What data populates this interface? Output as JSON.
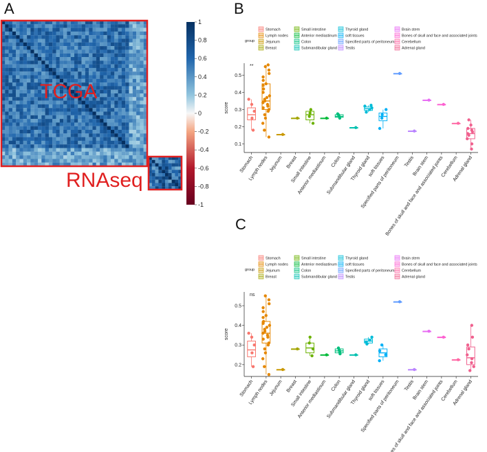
{
  "panels": {
    "a_label": "A",
    "b_label": "B",
    "c_label": "C"
  },
  "chart_data": [
    {
      "type": "heatmap",
      "panel": "A",
      "annotations": [
        "TCGA",
        "RNAseq"
      ],
      "colorbar": {
        "range": [
          -1,
          1
        ],
        "ticks": [
          "1",
          "0.8",
          "0.6",
          "0.4",
          "0.2",
          "0",
          "-0.2",
          "-0.4",
          "-0.6",
          "-0.8",
          "-1"
        ],
        "low_color": "#67001f",
        "mid_color": "#f7f7f7",
        "high_color": "#053061"
      },
      "blocks": [
        {
          "name": "TCGA",
          "size": 40
        },
        {
          "name": "RNAseq",
          "size": 10
        }
      ]
    },
    {
      "type": "box",
      "panel": "B",
      "legend_title": "group",
      "ylabel": "score",
      "ylim": [
        0.05,
        0.57
      ],
      "yticks": [
        "0.1",
        "0.2",
        "0.3",
        "0.4",
        "0.5"
      ],
      "significance": "**",
      "categories": [
        "Stomach",
        "Lymph nodes",
        "Jejunum",
        "Breast",
        "Small intestine",
        "Anterior mediastinum",
        "Colon",
        "Submandibular gland",
        "Thyroid gland",
        "soft tissues",
        "Specified parts of peritoneum",
        "Testis",
        "Brain stem",
        "Bones of skull and face and associated joints",
        "Cerebellum",
        "Adrenal gland"
      ],
      "colors": [
        "#F8766D",
        "#E58700",
        "#C99800",
        "#A3A500",
        "#6BB100",
        "#00BA38",
        "#00BF7D",
        "#00C0AF",
        "#00BCD8",
        "#00B0F6",
        "#619CFF",
        "#B983FF",
        "#E76BF3",
        "#FD61D1",
        "#FF67A4",
        "#F0608E"
      ],
      "stats": [
        {
          "q1": 0.24,
          "median": 0.27,
          "q3": 0.31,
          "min": 0.18,
          "max": 0.36,
          "points": [
            0.18,
            0.25,
            0.29,
            0.33,
            0.36
          ]
        },
        {
          "q1": 0.3,
          "median": 0.35,
          "q3": 0.45,
          "min": 0.14,
          "max": 0.56,
          "points": [
            0.14,
            0.18,
            0.22,
            0.25,
            0.27,
            0.29,
            0.3,
            0.31,
            0.32,
            0.33,
            0.34,
            0.35,
            0.36,
            0.37,
            0.38,
            0.4,
            0.42,
            0.44,
            0.45,
            0.47,
            0.49,
            0.51,
            0.53,
            0.55,
            0.56
          ]
        },
        {
          "q1": 0.155,
          "median": 0.155,
          "q3": 0.155,
          "min": 0.155,
          "max": 0.155,
          "points": [
            0.155
          ]
        },
        {
          "q1": 0.25,
          "median": 0.25,
          "q3": 0.25,
          "min": 0.25,
          "max": 0.25,
          "points": [
            0.25
          ]
        },
        {
          "q1": 0.24,
          "median": 0.27,
          "q3": 0.29,
          "min": 0.22,
          "max": 0.3,
          "points": [
            0.22,
            0.26,
            0.28,
            0.3
          ]
        },
        {
          "q1": 0.25,
          "median": 0.25,
          "q3": 0.25,
          "min": 0.25,
          "max": 0.25,
          "points": [
            0.25
          ]
        },
        {
          "q1": 0.255,
          "median": 0.26,
          "q3": 0.27,
          "min": 0.25,
          "max": 0.275,
          "points": [
            0.25,
            0.26,
            0.27,
            0.275
          ]
        },
        {
          "q1": 0.195,
          "median": 0.195,
          "q3": 0.195,
          "min": 0.195,
          "max": 0.195,
          "points": [
            0.195
          ]
        },
        {
          "q1": 0.295,
          "median": 0.305,
          "q3": 0.315,
          "min": 0.285,
          "max": 0.325,
          "points": [
            0.285,
            0.3,
            0.31,
            0.32,
            0.325
          ]
        },
        {
          "q1": 0.235,
          "median": 0.26,
          "q3": 0.28,
          "min": 0.19,
          "max": 0.3,
          "points": [
            0.19,
            0.25,
            0.27,
            0.3
          ]
        },
        {
          "q1": 0.51,
          "median": 0.51,
          "q3": 0.51,
          "min": 0.51,
          "max": 0.51,
          "points": [
            0.51
          ]
        },
        {
          "q1": 0.175,
          "median": 0.175,
          "q3": 0.175,
          "min": 0.175,
          "max": 0.175,
          "points": [
            0.175
          ]
        },
        {
          "q1": 0.355,
          "median": 0.355,
          "q3": 0.355,
          "min": 0.355,
          "max": 0.355,
          "points": [
            0.355
          ]
        },
        {
          "q1": 0.33,
          "median": 0.33,
          "q3": 0.33,
          "min": 0.33,
          "max": 0.33,
          "points": [
            0.33
          ]
        },
        {
          "q1": 0.22,
          "median": 0.22,
          "q3": 0.22,
          "min": 0.22,
          "max": 0.22,
          "points": [
            0.22
          ]
        },
        {
          "q1": 0.13,
          "median": 0.16,
          "q3": 0.19,
          "min": 0.07,
          "max": 0.24,
          "points": [
            0.07,
            0.1,
            0.13,
            0.15,
            0.16,
            0.17,
            0.18,
            0.19,
            0.21,
            0.24
          ]
        }
      ]
    },
    {
      "type": "box",
      "panel": "C",
      "legend_title": "group",
      "ylabel": "score",
      "ylim": [
        0.14,
        0.57
      ],
      "yticks": [
        "0.2",
        "0.3",
        "0.4",
        "0.5"
      ],
      "significance": "ns",
      "categories": [
        "Stomach",
        "Lymph nodes",
        "Jejunum",
        "Breast",
        "Small intestine",
        "Anterior mediastinum",
        "Colon",
        "Submandibular gland",
        "Thyroid gland",
        "soft tissues",
        "Specified parts of peritoneum",
        "Testis",
        "Brain stem",
        "Bones of skull and face and associated joints",
        "Cerebellum",
        "Adrenal gland"
      ],
      "colors": [
        "#F8766D",
        "#E58700",
        "#C99800",
        "#A3A500",
        "#6BB100",
        "#00BA38",
        "#00BF7D",
        "#00C0AF",
        "#00BCD8",
        "#00B0F6",
        "#619CFF",
        "#B983FF",
        "#E76BF3",
        "#FD61D1",
        "#FF67A4",
        "#F0608E"
      ],
      "stats": [
        {
          "q1": 0.24,
          "median": 0.275,
          "q3": 0.32,
          "min": 0.19,
          "max": 0.36,
          "points": [
            0.19,
            0.26,
            0.3,
            0.34,
            0.36
          ]
        },
        {
          "q1": 0.31,
          "median": 0.36,
          "q3": 0.42,
          "min": 0.15,
          "max": 0.55,
          "points": [
            0.15,
            0.19,
            0.23,
            0.26,
            0.28,
            0.3,
            0.31,
            0.33,
            0.34,
            0.35,
            0.36,
            0.37,
            0.38,
            0.39,
            0.4,
            0.41,
            0.42,
            0.44,
            0.45,
            0.47,
            0.49,
            0.51,
            0.53,
            0.55
          ]
        },
        {
          "q1": 0.175,
          "median": 0.175,
          "q3": 0.175,
          "min": 0.175,
          "max": 0.175,
          "points": [
            0.175
          ]
        },
        {
          "q1": 0.28,
          "median": 0.28,
          "q3": 0.28,
          "min": 0.28,
          "max": 0.28,
          "points": [
            0.28
          ]
        },
        {
          "q1": 0.26,
          "median": 0.285,
          "q3": 0.31,
          "min": 0.245,
          "max": 0.34,
          "points": [
            0.245,
            0.28,
            0.31,
            0.34
          ]
        },
        {
          "q1": 0.25,
          "median": 0.25,
          "q3": 0.25,
          "min": 0.25,
          "max": 0.25,
          "points": [
            0.25
          ]
        },
        {
          "q1": 0.26,
          "median": 0.27,
          "q3": 0.28,
          "min": 0.255,
          "max": 0.285,
          "points": [
            0.255,
            0.265,
            0.275,
            0.285
          ]
        },
        {
          "q1": 0.25,
          "median": 0.25,
          "q3": 0.25,
          "min": 0.25,
          "max": 0.25,
          "points": [
            0.25
          ]
        },
        {
          "q1": 0.31,
          "median": 0.32,
          "q3": 0.33,
          "min": 0.305,
          "max": 0.34,
          "points": [
            0.305,
            0.315,
            0.325,
            0.34
          ]
        },
        {
          "q1": 0.24,
          "median": 0.26,
          "q3": 0.28,
          "min": 0.22,
          "max": 0.3,
          "points": [
            0.22,
            0.25,
            0.27,
            0.3
          ]
        },
        {
          "q1": 0.52,
          "median": 0.52,
          "q3": 0.52,
          "min": 0.52,
          "max": 0.52,
          "points": [
            0.52
          ]
        },
        {
          "q1": 0.175,
          "median": 0.175,
          "q3": 0.175,
          "min": 0.175,
          "max": 0.175,
          "points": [
            0.175
          ]
        },
        {
          "q1": 0.37,
          "median": 0.37,
          "q3": 0.37,
          "min": 0.37,
          "max": 0.37,
          "points": [
            0.37
          ]
        },
        {
          "q1": 0.34,
          "median": 0.34,
          "q3": 0.34,
          "min": 0.34,
          "max": 0.34,
          "points": [
            0.34
          ]
        },
        {
          "q1": 0.225,
          "median": 0.225,
          "q3": 0.225,
          "min": 0.225,
          "max": 0.225,
          "points": [
            0.225
          ]
        },
        {
          "q1": 0.2,
          "median": 0.235,
          "q3": 0.29,
          "min": 0.17,
          "max": 0.4,
          "points": [
            0.17,
            0.19,
            0.21,
            0.23,
            0.25,
            0.28,
            0.3,
            0.34,
            0.4
          ]
        }
      ]
    }
  ]
}
